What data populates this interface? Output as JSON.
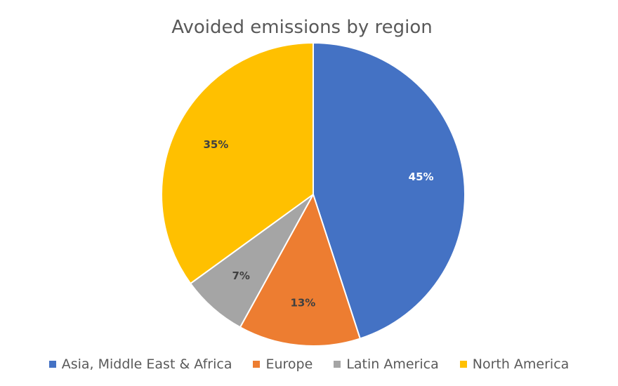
{
  "chart_data": {
    "type": "pie",
    "title": "Avoided emissions by region",
    "categories": [
      "Asia, Middle East & Africa",
      "Europe",
      "Latin America",
      "North America"
    ],
    "values": [
      45,
      13,
      7,
      35
    ],
    "labels": [
      "45%",
      "13%",
      "7%",
      "35%"
    ],
    "colors": [
      "#4472C4",
      "#ED7D31",
      "#A5A5A5",
      "#FFC000"
    ],
    "label_colors": [
      "#FFFFFF",
      "#404040",
      "#404040",
      "#404040"
    ],
    "legend_position": "bottom",
    "start_angle_deg": 0,
    "direction": "clockwise"
  }
}
